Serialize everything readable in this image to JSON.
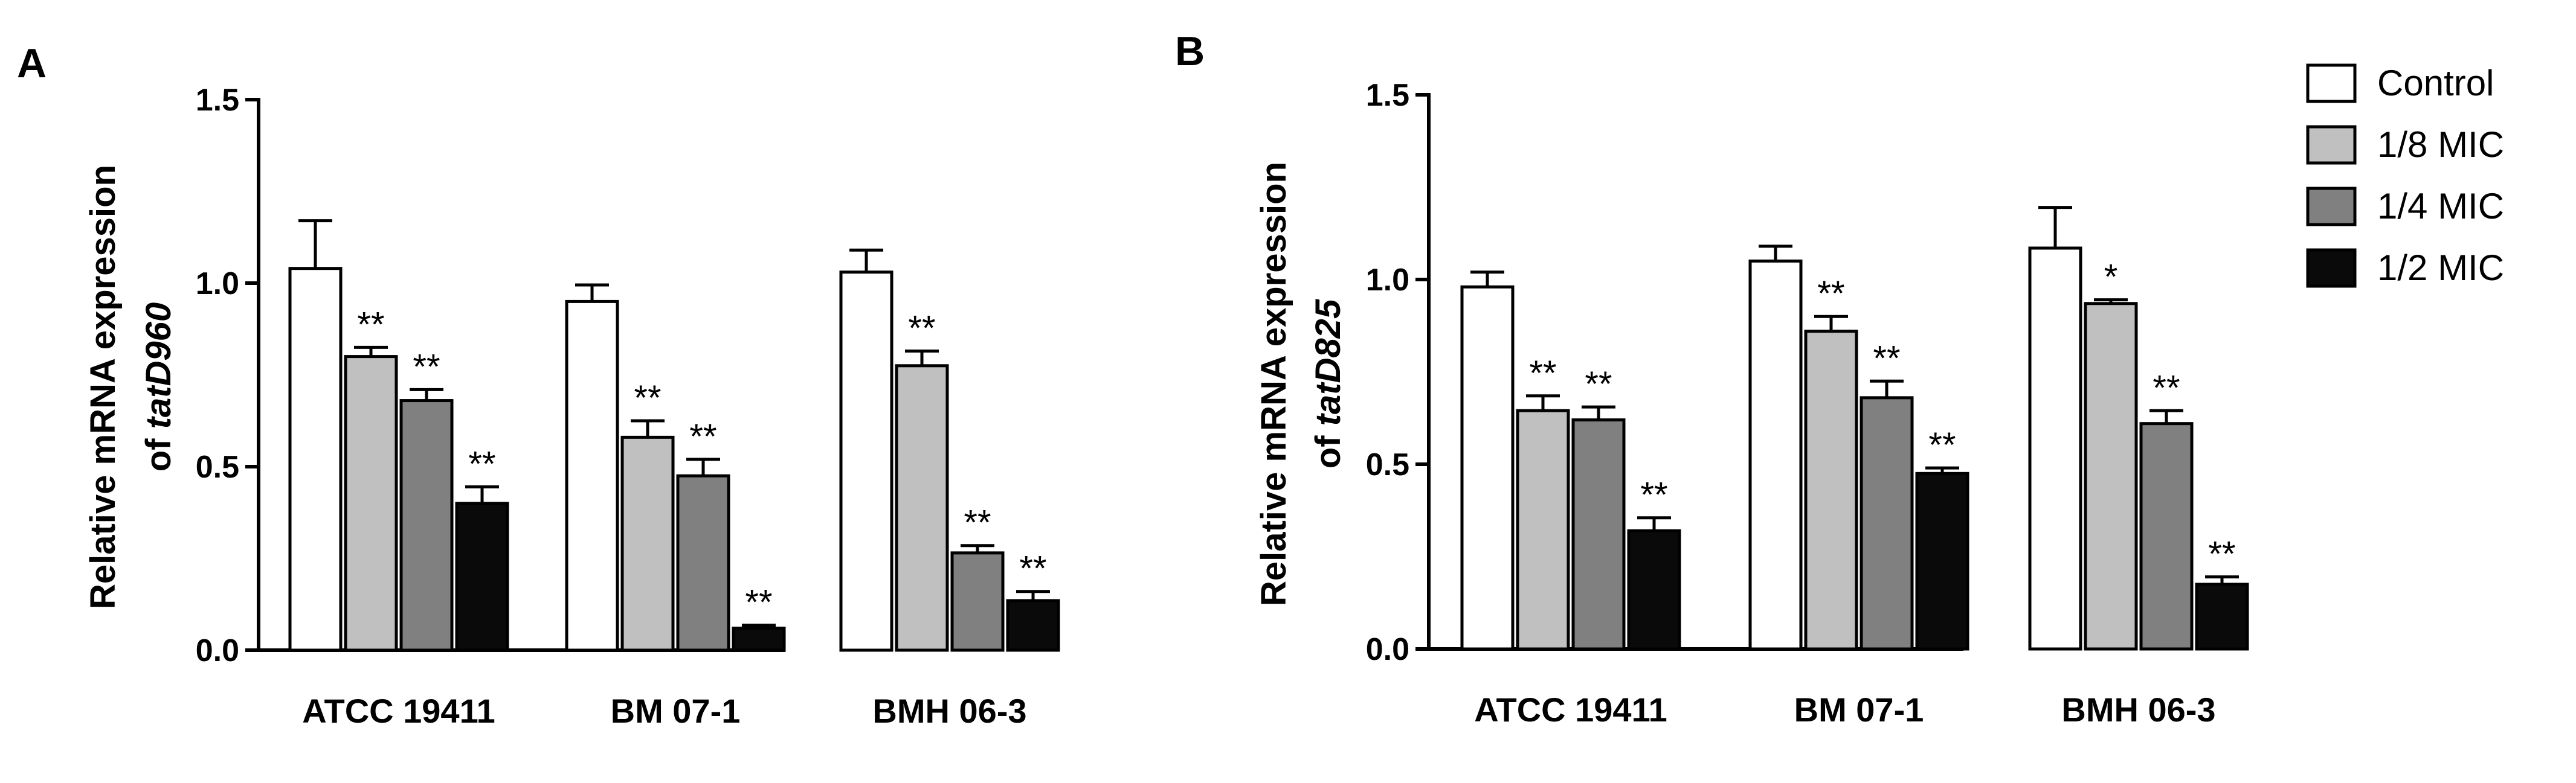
{
  "legend": [
    {
      "label": "Control",
      "color": "#ffffff"
    },
    {
      "label": "1/8 MIC",
      "color": "#c0c0c0"
    },
    {
      "label": "1/4 MIC",
      "color": "#808080"
    },
    {
      "label": "1/2 MIC",
      "color": "#0a0a0a"
    }
  ],
  "chart_data": [
    {
      "type": "bar",
      "panel": "A",
      "ylabel_line1": "Relative mRNA expression",
      "ylabel_line2_prefix": "of ",
      "ylabel_line2_gene": "tatD960",
      "ylim": [
        0,
        1.5
      ],
      "yticks": [
        "0.0",
        "0.5",
        "1.0",
        "1.5"
      ],
      "categories": [
        "ATCC 19411",
        "BM 07-1",
        "BMH 06-3"
      ],
      "series": [
        {
          "name": "Control",
          "values": [
            1.04,
            0.95,
            1.03
          ],
          "errors": [
            0.13,
            0.045,
            0.06
          ],
          "sig": [
            "",
            "",
            ""
          ]
        },
        {
          "name": "1/8 MIC",
          "values": [
            0.8,
            0.58,
            0.775
          ],
          "errors": [
            0.025,
            0.045,
            0.04
          ],
          "sig": [
            "**",
            "**",
            "**"
          ]
        },
        {
          "name": "1/4 MIC",
          "values": [
            0.68,
            0.475,
            0.265
          ],
          "errors": [
            0.03,
            0.045,
            0.02
          ],
          "sig": [
            "**",
            "**",
            "**"
          ]
        },
        {
          "name": "1/2 MIC",
          "values": [
            0.4,
            0.06,
            0.135
          ],
          "errors": [
            0.045,
            0.008,
            0.025
          ],
          "sig": [
            "**",
            "**",
            "**"
          ]
        }
      ]
    },
    {
      "type": "bar",
      "panel": "B",
      "ylabel_line1": "Relative mRNA expression",
      "ylabel_line2_prefix": "of ",
      "ylabel_line2_gene": "tatD825",
      "ylim": [
        0,
        1.5
      ],
      "yticks": [
        "0.0",
        "0.5",
        "1.0",
        "1.5"
      ],
      "categories": [
        "ATCC 19411",
        "BM 07-1",
        "BMH 06-3"
      ],
      "series": [
        {
          "name": "Control",
          "values": [
            0.98,
            1.05,
            1.085
          ],
          "errors": [
            0.04,
            0.04,
            0.11
          ],
          "sig": [
            "",
            "",
            ""
          ]
        },
        {
          "name": "1/8 MIC",
          "values": [
            0.645,
            0.86,
            0.935
          ],
          "errors": [
            0.04,
            0.04,
            0.01
          ],
          "sig": [
            "**",
            "**",
            "*"
          ]
        },
        {
          "name": "1/4 MIC",
          "values": [
            0.62,
            0.68,
            0.61
          ],
          "errors": [
            0.035,
            0.045,
            0.035
          ],
          "sig": [
            "**",
            "**",
            "**"
          ]
        },
        {
          "name": "1/2 MIC",
          "values": [
            0.32,
            0.475,
            0.175
          ],
          "errors": [
            0.035,
            0.015,
            0.02
          ],
          "sig": [
            "**",
            "**",
            "**"
          ]
        }
      ]
    }
  ]
}
